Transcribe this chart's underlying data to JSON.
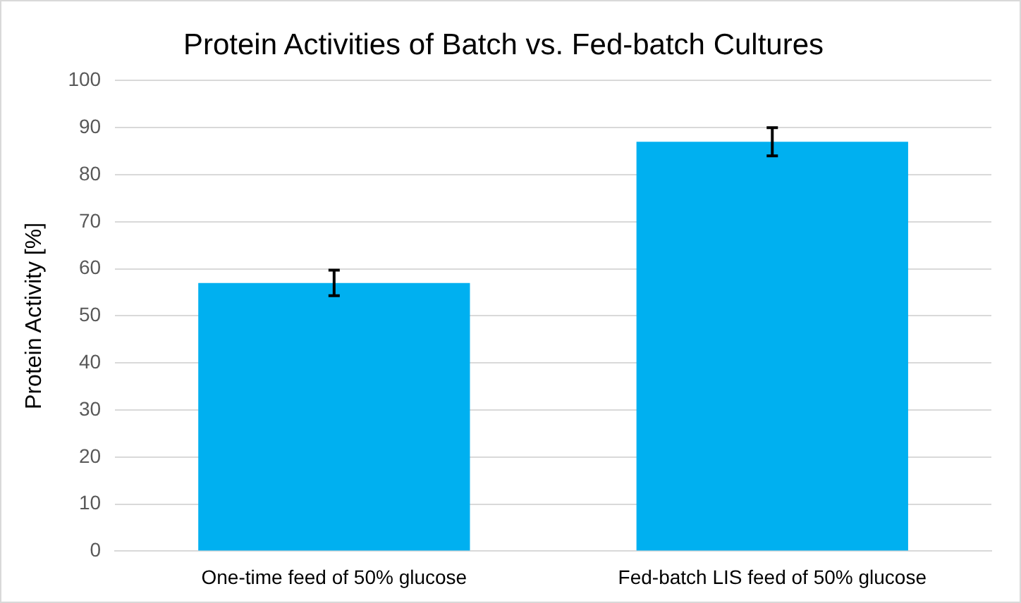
{
  "chart_data": {
    "type": "bar",
    "title": "Protein Activities of Batch vs. Fed-batch Cultures",
    "ylabel": "Protein Activity [%]",
    "categories": [
      "One-time feed of 50% glucose",
      "Fed-batch LIS feed of 50% glucose"
    ],
    "values": [
      57,
      87
    ],
    "errors": [
      2.7,
      3
    ],
    "color": "#00b0f0",
    "ylim": [
      0,
      100
    ],
    "yticks": [
      0,
      10,
      20,
      30,
      40,
      50,
      60,
      70,
      80,
      90,
      100
    ],
    "grid": "y",
    "legend": false
  }
}
